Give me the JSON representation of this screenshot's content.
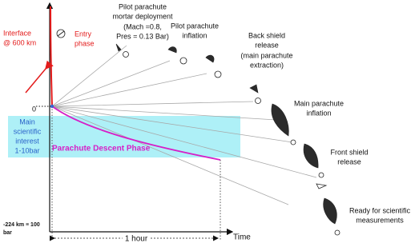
{
  "labels": {
    "interface": [
      "Interface",
      "@ 600 km"
    ],
    "entry": [
      "Entry",
      "phase"
    ],
    "pilot_deploy": [
      "Pilot parachute",
      "mortar deployment",
      "(Mach =0.8,",
      "Pres = 0.13 Bar)"
    ],
    "pilot_inflation": [
      "Pilot parachute",
      "inflation"
    ],
    "back_shield": [
      "Back shield",
      "release",
      "(main parachute",
      "extraction)"
    ],
    "main_inflation": [
      "Main parachute",
      "inflation"
    ],
    "front_shield": [
      "Front shield",
      "release"
    ],
    "ready": [
      "Ready for scientific",
      "measurements"
    ],
    "zero": "0",
    "science": [
      "Main",
      "scientific",
      "interest",
      "1-10bar"
    ],
    "descent": "Parachute Descent Phase",
    "bottom": [
      "-224 km ≡ 100",
      "bar"
    ],
    "hour": "1 hour",
    "time": "Time"
  }
}
